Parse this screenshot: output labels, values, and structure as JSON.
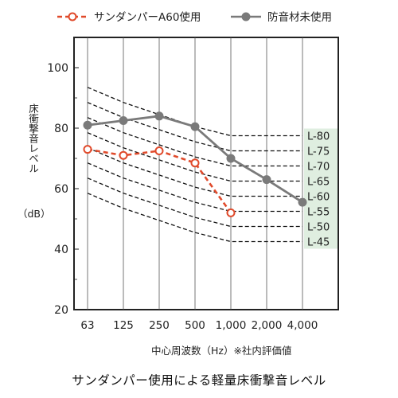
{
  "chart_data": {
    "type": "line",
    "xlabel": "中心周波数（Hz）※社内評価値",
    "ylabel": "床衝撃音レベル",
    "ylabel_unit": "（dB）",
    "caption": "サンダンパー使用による軽量床衝撃音レベル",
    "categories": [
      "63",
      "125",
      "250",
      "500",
      "1,000",
      "2,000",
      "4,000"
    ],
    "ylim": [
      20,
      110
    ],
    "yticks": [
      20,
      40,
      60,
      80,
      100
    ],
    "legend_position": "top",
    "grid": "vertical lines at each category",
    "series": [
      {
        "name": "サンダンパーA60使用",
        "color": "#e04a2b",
        "style": "dashed, open circle markers",
        "values": [
          73,
          71,
          72.5,
          68.5,
          52,
          null,
          null
        ]
      },
      {
        "name": "防音材未使用",
        "color": "#7a7a7a",
        "style": "solid, filled circle markers",
        "values": [
          81,
          82.5,
          84,
          80.5,
          70,
          63,
          55.5
        ]
      }
    ],
    "reference_curves": {
      "color": "#111111",
      "style": "dashed",
      "label_background": "#dfeee0",
      "offsets": [
        -16,
        -11,
        -7,
        -3,
        0,
        0,
        0
      ],
      "labels": [
        {
          "label": "L-80",
          "level": 77.5
        },
        {
          "label": "L-75",
          "level": 72.5
        },
        {
          "label": "L-70",
          "level": 67.5
        },
        {
          "label": "L-65",
          "level": 62.5
        },
        {
          "label": "L-60",
          "level": 57.5
        },
        {
          "label": "L-55",
          "level": 52.5
        },
        {
          "label": "L-50",
          "level": 47.5
        },
        {
          "label": "L-45",
          "level": 42.5
        }
      ]
    }
  }
}
